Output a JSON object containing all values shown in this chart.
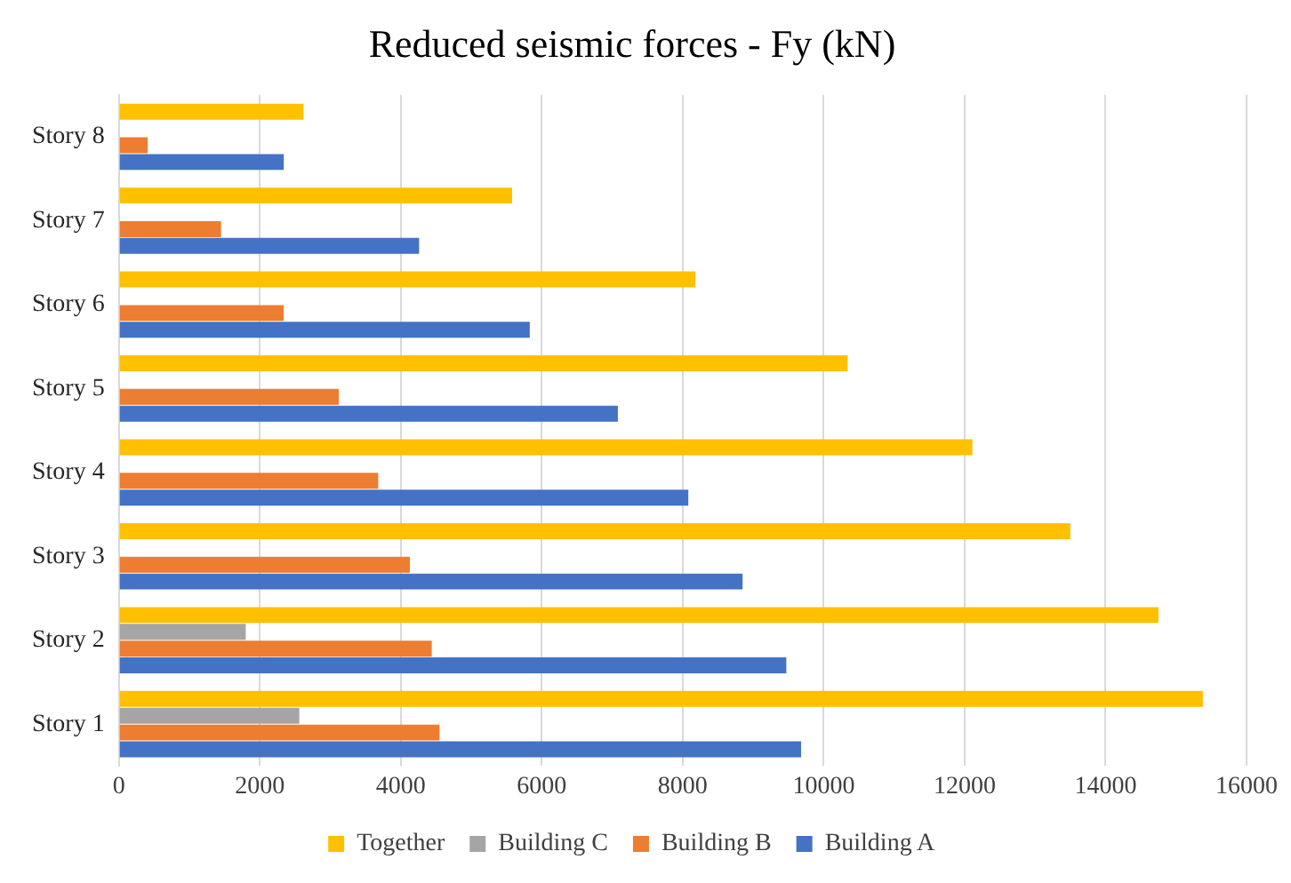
{
  "chart_data": {
    "type": "bar",
    "orientation": "horizontal",
    "title": "Reduced seismic forces - Fy (kN)",
    "categories": [
      "Story 8",
      "Story 7",
      "Story 6",
      "Story 5",
      "Story 4",
      "Story 3",
      "Story 2",
      "Story 1"
    ],
    "series": [
      {
        "name": "Together",
        "color": "#ffc000",
        "values": [
          2620,
          5580,
          8180,
          10340,
          12110,
          13500,
          14750,
          15380
        ]
      },
      {
        "name": "Building C",
        "color": "#a5a5a5",
        "values": [
          null,
          null,
          null,
          null,
          null,
          null,
          1800,
          2560
        ]
      },
      {
        "name": "Building B",
        "color": "#ed7d31",
        "values": [
          410,
          1450,
          2340,
          3120,
          3680,
          4130,
          4440,
          4550
        ]
      },
      {
        "name": "Building A",
        "color": "#4472c4",
        "values": [
          2340,
          4260,
          5830,
          7080,
          8080,
          8850,
          9470,
          9680
        ]
      }
    ],
    "xlim": [
      0,
      16000
    ],
    "xticks": [
      0,
      2000,
      4000,
      6000,
      8000,
      10000,
      12000,
      14000,
      16000
    ],
    "grid": "x",
    "legend": "bottom"
  }
}
